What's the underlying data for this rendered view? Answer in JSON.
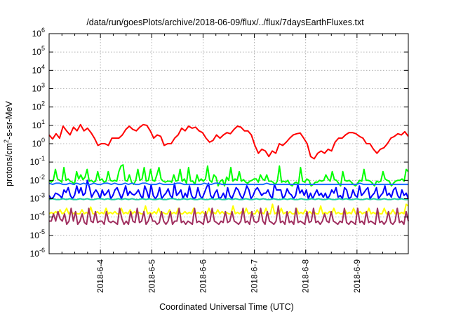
{
  "chart_data": {
    "type": "line",
    "title": "/data/run/goesPlots/archive/2018-06-09/flux/../flux/7daysEarthFluxes.txt",
    "xlabel": "Coordinated Universal Time (UTC)",
    "ylabel": {
      "base": "protons/cm",
      "sup": "2",
      "rest": "-s-sr-MeV"
    },
    "y_scale": "log",
    "ylim": [
      1e-06,
      1000000.0
    ],
    "y_ticks": [
      {
        "value": -6,
        "base": "10",
        "exp": "-6"
      },
      {
        "value": -5,
        "base": "10",
        "exp": "-5"
      },
      {
        "value": -4,
        "base": "10",
        "exp": "-4"
      },
      {
        "value": -3,
        "base": "10",
        "exp": "-3"
      },
      {
        "value": -2,
        "base": "10",
        "exp": "-2"
      },
      {
        "value": -1,
        "base": "10",
        "exp": "-1"
      },
      {
        "value": 0,
        "base": "10",
        "exp": "0"
      },
      {
        "value": 1,
        "base": "10",
        "exp": "1"
      },
      {
        "value": 2,
        "base": "10",
        "exp": "2"
      },
      {
        "value": 3,
        "base": "10",
        "exp": "3"
      },
      {
        "value": 4,
        "base": "10",
        "exp": "4"
      },
      {
        "value": 5,
        "base": "10",
        "exp": "5"
      },
      {
        "value": 6,
        "base": "10",
        "exp": "6"
      }
    ],
    "xlim": [
      2018.0603,
      2018.061
    ],
    "x_ticks": [
      "2018-6-4",
      "2018-6-5",
      "2018-6-6",
      "2018-6-7",
      "2018-6-8",
      "2018-6-9"
    ],
    "x_range_days": {
      "start": "2018-06-03T00:00",
      "end": "2018-06-10T00:00"
    },
    "grid": true,
    "series": [
      {
        "color": "#ff0000",
        "points_per_day": 8,
        "values": [
          3.0,
          1.8,
          3.5,
          2.0,
          9.0,
          5.0,
          3.0,
          8.0,
          5.0,
          11.0,
          5.0,
          7.0,
          4.0,
          2.0,
          0.8,
          1.0,
          1.0,
          0.8,
          2.0,
          2.0,
          2.0,
          3.0,
          6.0,
          9.0,
          6.0,
          5.0,
          8.0,
          11.0,
          10.0,
          5.0,
          2.0,
          3.0,
          2.5,
          0.8,
          1.0,
          1.0,
          2.0,
          3.0,
          7.0,
          5.0,
          9.0,
          7.0,
          8.0,
          5.0,
          4.0,
          2.0,
          1.2,
          1.5,
          3.0,
          2.0,
          3.0,
          4.0,
          3.5,
          6.0,
          9.0,
          8.0,
          5.0,
          5.0,
          3.0,
          0.8,
          0.3,
          0.5,
          0.4,
          0.2,
          0.4,
          0.3,
          1.0,
          0.8,
          1.2,
          2.0,
          3.0,
          3.5,
          3.8,
          2.0,
          1.0,
          0.2,
          0.15,
          0.3,
          0.4,
          0.3,
          0.5,
          0.4,
          1.2,
          2.0,
          2.0,
          3.0,
          4.0,
          4.0,
          3.5,
          2.5,
          2.0,
          1.0,
          1.0,
          0.5,
          0.3,
          0.5,
          0.6,
          1.0,
          2.0,
          2.5,
          3.5,
          3.0,
          4.5,
          2.5
        ]
      },
      {
        "color": "#00ff00",
        "points_per_day": 10,
        "values": [
          0.01,
          0.008,
          0.01,
          0.04,
          0.012,
          0.01,
          0.008,
          0.05,
          0.01,
          0.012,
          0.009,
          0.008,
          0.006,
          0.03,
          0.012,
          0.02,
          0.011,
          0.015,
          0.04,
          0.009,
          0.01,
          0.008,
          0.009,
          0.03,
          0.01,
          0.012,
          0.008,
          0.009,
          0.03,
          0.01,
          0.009,
          0.01,
          0.009,
          0.03,
          0.06,
          0.07,
          0.01,
          0.009,
          0.02,
          0.008,
          0.006,
          0.01,
          0.04,
          0.01,
          0.012,
          0.05,
          0.009,
          0.01,
          0.04,
          0.01,
          0.009,
          0.02,
          0.05,
          0.012,
          0.009,
          0.008,
          0.009,
          0.009,
          0.008,
          0.02,
          0.009,
          0.01,
          0.04,
          0.009,
          0.012,
          0.007,
          0.05,
          0.009,
          0.009,
          0.006,
          0.02,
          0.009,
          0.012,
          0.009,
          0.012,
          0.06,
          0.01,
          0.008,
          0.02,
          0.015,
          0.005,
          0.009,
          0.011,
          0.005,
          0.015,
          0.01,
          0.05,
          0.009,
          0.012,
          0.01,
          0.03,
          0.009,
          0.011,
          0.008,
          0.007,
          0.009,
          0.01,
          0.012,
          0.012,
          0.008,
          0.02,
          0.012,
          0.01,
          0.02,
          0.009,
          0.009,
          0.008,
          0.006,
          0.009,
          0.06,
          0.008,
          0.009,
          0.008,
          0.01,
          0.006,
          0.005,
          0.007,
          0.008,
          0.006,
          0.05,
          0.009,
          0.008,
          0.012,
          0.01,
          0.005,
          0.006,
          0.008,
          0.008,
          0.01,
          0.009,
          0.01,
          0.02,
          0.012,
          0.009,
          0.03,
          0.011,
          0.01,
          0.007,
          0.005,
          0.03,
          0.01,
          0.009,
          0.01,
          0.008,
          0.006,
          0.005,
          0.007,
          0.01,
          0.009,
          0.04,
          0.01,
          0.01,
          0.009,
          0.007,
          0.005,
          0.009,
          0.008,
          0.009,
          0.03,
          0.012,
          0.01,
          0.009,
          0.005,
          0.007,
          0.009,
          0.01,
          0.01,
          0.012,
          0.009,
          0.04,
          0.03
        ]
      },
      {
        "color": "#0000ff",
        "points_per_day": 10,
        "values": [
          0.0015,
          0.001,
          0.0012,
          0.002,
          0.0018,
          0.0015,
          0.0011,
          0.003,
          0.0022,
          0.004,
          0.0015,
          0.001,
          0.0016,
          0.005,
          0.002,
          0.004,
          0.0015,
          0.002,
          0.01,
          0.004,
          0.0012,
          0.002,
          0.003,
          0.002,
          0.001,
          0.003,
          0.0015,
          0.002,
          0.003,
          0.001,
          0.0015,
          0.003,
          0.004,
          0.002,
          0.001,
          0.002,
          0.005,
          0.0015,
          0.0025,
          0.0018,
          0.0016,
          0.002,
          0.003,
          0.0015,
          0.001,
          0.005,
          0.0025,
          0.001,
          0.006,
          0.0015,
          0.001,
          0.0015,
          0.004,
          0.001,
          0.0015,
          0.002,
          0.0035,
          0.0015,
          0.0011,
          0.007,
          0.0015,
          0.002,
          0.003,
          0.001,
          0.002,
          0.0012,
          0.005,
          0.0015,
          0.001,
          0.0012,
          0.004,
          0.0015,
          0.001,
          0.002,
          0.004,
          0.007,
          0.0015,
          0.001,
          0.002,
          0.003,
          0.001,
          0.0012,
          0.002,
          0.001,
          0.004,
          0.0015,
          0.001,
          0.002,
          0.004,
          0.003,
          0.0015,
          0.001,
          0.002,
          0.005,
          0.003,
          0.001,
          0.0015,
          0.003,
          0.004,
          0.0025,
          0.0015,
          0.002,
          0.002,
          0.003,
          0.0015,
          0.001,
          0.006,
          0.003,
          0.003,
          0.003,
          0.001,
          0.0015,
          0.0035,
          0.002,
          0.0016,
          0.001,
          0.0015,
          0.006,
          0.002,
          0.003,
          0.0015,
          0.003,
          0.001,
          0.002,
          0.001,
          0.0018,
          0.003,
          0.0015,
          0.002,
          0.0012,
          0.002,
          0.001,
          0.0015,
          0.003,
          0.002,
          0.004,
          0.0012,
          0.0015,
          0.001,
          0.004,
          0.003,
          0.001,
          0.0012,
          0.003,
          0.0015,
          0.0012,
          0.005,
          0.0015,
          0.002,
          0.003,
          0.004,
          0.001,
          0.0015,
          0.002,
          0.004,
          0.001,
          0.0015,
          0.002,
          0.005,
          0.0015,
          0.002,
          0.0012,
          0.003,
          0.004,
          0.0015,
          0.001,
          0.003,
          0.0015,
          0.002,
          0.001
        ]
      },
      {
        "color": "#1a6bff",
        "points_per_day": 8,
        "values": [
          0.007,
          0.006,
          0.007,
          0.007,
          0.006,
          0.006,
          0.007,
          0.006,
          0.007,
          0.006,
          0.007,
          0.006,
          0.006,
          0.007,
          0.006,
          0.006,
          0.007,
          0.007,
          0.006,
          0.007,
          0.006,
          0.006,
          0.007,
          0.006,
          0.007,
          0.006,
          0.006,
          0.007,
          0.007,
          0.006,
          0.006,
          0.006,
          0.007,
          0.006,
          0.006,
          0.006,
          0.006,
          0.007,
          0.007,
          0.006,
          0.006,
          0.006,
          0.006,
          0.006,
          0.006,
          0.007,
          0.006,
          0.006,
          0.007,
          0.007,
          0.006,
          0.006,
          0.006,
          0.006,
          0.006,
          0.006,
          0.006,
          0.006,
          0.006,
          0.006,
          0.006,
          0.006,
          0.006,
          0.007,
          0.006,
          0.006,
          0.006,
          0.006,
          0.006,
          0.006,
          0.006,
          0.006,
          0.006,
          0.006,
          0.006,
          0.006,
          0.006,
          0.006,
          0.006,
          0.006,
          0.006,
          0.006,
          0.006,
          0.006,
          0.006,
          0.006,
          0.006,
          0.006,
          0.006,
          0.006,
          0.007,
          0.006,
          0.006,
          0.006,
          0.006,
          0.006,
          0.006,
          0.006,
          0.006,
          0.006,
          0.006,
          0.006,
          0.006,
          0.006,
          0.006
        ]
      },
      {
        "color": "#20d0a0",
        "points_per_day": 8,
        "values": [
          0.0009,
          0.001,
          0.0009,
          0.0009,
          0.001,
          0.0009,
          0.001,
          0.0009,
          0.0009,
          0.001,
          0.0009,
          0.001,
          0.0009,
          0.0009,
          0.001,
          0.001,
          0.0009,
          0.001,
          0.0009,
          0.0009,
          0.001,
          0.0009,
          0.001,
          0.0009,
          0.001,
          0.0009,
          0.0009,
          0.001,
          0.0009,
          0.001,
          0.0009,
          0.0009,
          0.001,
          0.0009,
          0.0009,
          0.001,
          0.001,
          0.0009,
          0.0009,
          0.001,
          0.0009,
          0.001,
          0.0009,
          0.0009,
          0.001,
          0.0009,
          0.0009,
          0.001,
          0.0009,
          0.001,
          0.0009,
          0.0009,
          0.001,
          0.0009,
          0.001,
          0.0009,
          0.0009,
          0.001,
          0.0009,
          0.0009,
          0.001,
          0.0009,
          0.001,
          0.0009,
          0.0009,
          0.001,
          0.0009,
          0.0009,
          0.001,
          0.0009,
          0.001,
          0.0009,
          0.0009,
          0.001,
          0.0009,
          0.0009,
          0.001,
          0.0009,
          0.001,
          0.0009,
          0.0009,
          0.001,
          0.0009,
          0.0009,
          0.001,
          0.0009,
          0.001,
          0.0009,
          0.0009,
          0.001,
          0.0009,
          0.0009,
          0.001,
          0.0009,
          0.001,
          0.0009,
          0.0009,
          0.001,
          0.0009,
          0.0009,
          0.001,
          0.0009,
          0.001,
          0.0009,
          0.0009
        ]
      },
      {
        "color": "#ffff00",
        "points_per_day": 10,
        "values": [
          0.00015,
          0.00018,
          0.00015,
          0.0002,
          0.00015,
          0.00025,
          0.00015,
          0.00018,
          0.0003,
          0.00015,
          0.0002,
          0.00015,
          0.00018,
          0.00015,
          0.00015,
          0.00025,
          0.00015,
          0.00018,
          0.00015,
          0.00035,
          0.00015,
          0.00015,
          0.0002,
          0.00015,
          0.00018,
          0.00015,
          0.0003,
          0.00015,
          0.00018,
          0.00015,
          0.0002,
          0.00015,
          0.00015,
          0.0003,
          0.00015,
          0.00018,
          0.00015,
          0.00025,
          0.00015,
          0.0002,
          0.00015,
          0.00018,
          0.00015,
          0.00015,
          0.0004,
          0.00015,
          0.00018,
          0.00015,
          0.0002,
          0.00015,
          0.0003,
          0.00015,
          0.00018,
          0.00015,
          0.00015,
          0.00025,
          0.00015,
          0.00018,
          0.00015,
          0.0003,
          0.00015,
          0.00015,
          0.0002,
          0.00015,
          0.00018,
          0.00015,
          0.0003,
          0.00015,
          0.00018,
          0.00015,
          0.0002,
          0.00015,
          0.00015,
          0.0003,
          0.00015,
          0.00018,
          0.00015,
          0.00025,
          0.00015,
          0.0002,
          0.00015,
          0.00018,
          0.00015,
          0.00015,
          0.0004,
          0.00015,
          0.00018,
          0.00015,
          0.0002,
          0.00015,
          0.0003,
          0.00015,
          0.00018,
          0.00015,
          0.00015,
          0.00025,
          0.00015,
          0.00018,
          0.00015,
          0.0003,
          0.00015,
          0.00015,
          0.0005,
          0.00015,
          0.00018,
          0.00015,
          0.0003,
          0.00015,
          0.00018,
          0.00015,
          0.0002,
          0.00015,
          0.00015,
          0.0003,
          0.00015,
          0.00018,
          0.00015,
          0.00025,
          0.00015,
          0.0002,
          0.00015,
          0.00018,
          0.00015,
          0.00015,
          0.0004,
          0.00015,
          0.00018,
          0.00015,
          0.0002,
          0.00015,
          0.0003,
          0.00015,
          0.00018,
          0.00015,
          0.00015,
          0.00025,
          0.00015,
          0.00018,
          0.00015,
          0.0003,
          0.00015,
          0.00015,
          0.0002,
          0.00015,
          0.00018,
          0.00015,
          0.0003,
          0.00015,
          0.00018,
          0.00015,
          0.0002,
          0.00015,
          0.00015,
          0.0003,
          0.00015,
          0.00018,
          0.00015,
          0.00025,
          0.00015,
          0.0002,
          0.00015,
          0.00018,
          0.00015,
          0.0005,
          0.0004
        ]
      },
      {
        "color": "#a03060",
        "points_per_day": 10,
        "values": [
          6e-05,
          6e-05,
          0.00015,
          6e-05,
          0.0002,
          8e-05,
          6e-05,
          0.00015,
          4e-05,
          6e-05,
          0.0003,
          6e-05,
          0.0002,
          4e-05,
          6e-05,
          0.00015,
          5e-05,
          4e-05,
          0.0003,
          6e-05,
          5e-05,
          0.0002,
          5e-05,
          6e-05,
          6e-05,
          4e-05,
          0.0002,
          6e-05,
          5e-05,
          6e-05,
          5e-05,
          4e-05,
          0.0003,
          8e-05,
          4e-05,
          6e-05,
          4e-05,
          0.0002,
          6e-05,
          5e-05,
          0.0003,
          5e-05,
          6e-05,
          0.0002,
          4e-05,
          6e-05,
          0.00015,
          6e-05,
          6e-05,
          4e-05,
          5e-05,
          0.0002,
          6e-05,
          4e-05,
          6e-05,
          0.0002,
          4e-05,
          6e-05,
          6e-05,
          0.0003,
          5e-05,
          6e-05,
          4e-05,
          6e-05,
          5e-05,
          4e-05,
          0.0003,
          5e-05,
          6e-05,
          5e-05,
          4e-05,
          0.0002,
          5e-05,
          6e-05,
          0.0003,
          6e-05,
          5e-05,
          4e-05,
          6e-05,
          5e-05,
          0.0002,
          5e-05,
          6e-05,
          0.0002,
          6e-05,
          5e-05,
          4e-05,
          6e-05,
          0.0003,
          5e-05,
          6e-05,
          4e-05,
          0.0002,
          6e-05,
          5e-05,
          6e-05,
          0.0003,
          6e-05,
          4e-05,
          0.0002,
          6e-05,
          5e-05,
          4e-05,
          6e-05,
          0.0004,
          5e-05,
          6e-05,
          4e-05,
          0.0002,
          5e-05,
          6e-05,
          4e-05,
          0.0003,
          5e-05,
          6e-05,
          5e-05,
          4e-05,
          0.0002,
          5e-05,
          6e-05,
          0.0003,
          5e-05,
          6e-05,
          4e-05,
          6e-05,
          0.00015,
          6e-05,
          5e-05,
          0.0002,
          6e-05,
          5e-05,
          4e-05,
          6e-05,
          5e-05,
          0.0003,
          5e-05,
          4e-05,
          6e-05,
          5e-05,
          4e-05,
          0.0003,
          5e-05,
          6e-05,
          4e-05,
          0.0002,
          5e-05,
          6e-05,
          5e-05,
          4e-05,
          0.0003,
          5e-05,
          6e-05,
          4e-05,
          6e-05,
          0.0002,
          5e-05,
          4e-05,
          6e-05,
          0.0003,
          5e-05,
          6e-05,
          4e-05,
          0.0002,
          6e-05
        ]
      }
    ]
  }
}
